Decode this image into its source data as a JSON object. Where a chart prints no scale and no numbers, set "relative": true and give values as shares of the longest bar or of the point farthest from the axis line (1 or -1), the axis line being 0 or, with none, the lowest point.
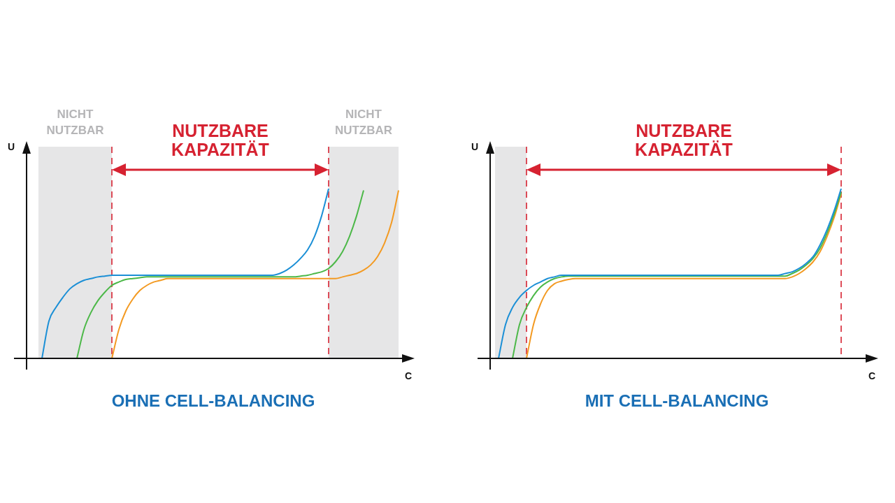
{
  "chart_data": [
    {
      "type": "line",
      "title": "OHNE CELL-BALANCING",
      "xlabel": "C",
      "ylabel": "U",
      "relative": true,
      "annotations": [
        "NICHT NUTZBAR",
        "NICHT NUTZBAR",
        "NUTZBARE KAPAZITÄT"
      ],
      "categories": [
        null,
        null,
        null,
        null,
        null,
        null,
        null,
        null,
        null,
        null,
        null,
        null,
        null,
        null,
        null,
        null,
        null,
        null,
        null,
        null,
        null,
        null,
        null,
        null,
        null,
        null,
        null,
        null,
        null,
        null,
        null,
        null,
        null,
        null,
        null,
        null,
        null,
        null,
        null,
        null,
        null,
        null,
        null,
        null,
        null,
        null,
        null,
        null,
        null,
        null,
        null,
        null,
        null,
        null
      ],
      "series": [
        {
          "color": "#1b8fd6",
          "values": [
            null,
            null,
            0,
            0.22,
            0.3,
            0.36,
            0.41,
            0.44,
            0.46,
            0.47,
            0.48,
            0.485,
            0.49,
            0.49,
            0.49,
            0.49,
            0.49,
            0.49,
            0.49,
            0.49,
            0.49,
            0.49,
            0.49,
            0.49,
            0.49,
            0.49,
            0.49,
            0.49,
            0.49,
            0.49,
            0.49,
            0.49,
            0.49,
            0.49,
            0.49,
            0.49,
            0.5,
            0.52,
            0.55,
            0.59,
            0.64,
            0.72,
            0.84,
            1,
            null,
            null,
            null,
            null,
            null,
            null,
            null,
            null,
            null,
            null
          ]
        },
        {
          "color": "#4cb848",
          "values": [
            null,
            null,
            null,
            null,
            null,
            null,
            null,
            0,
            0.17,
            0.27,
            0.34,
            0.39,
            0.43,
            0.45,
            0.465,
            0.47,
            0.475,
            0.48,
            0.48,
            0.48,
            0.48,
            0.48,
            0.48,
            0.48,
            0.48,
            0.48,
            0.48,
            0.48,
            0.48,
            0.48,
            0.48,
            0.48,
            0.48,
            0.48,
            0.48,
            0.48,
            0.48,
            0.48,
            0.48,
            0.485,
            0.49,
            0.5,
            0.51,
            0.53,
            0.57,
            0.63,
            0.72,
            0.84,
            0.99,
            null,
            null,
            null,
            null,
            null
          ]
        },
        {
          "color": "#f39a22",
          "values": [
            null,
            null,
            null,
            null,
            null,
            null,
            null,
            null,
            null,
            null,
            null,
            null,
            0,
            0.17,
            0.28,
            0.35,
            0.4,
            0.43,
            0.45,
            0.46,
            0.47,
            0.47,
            0.47,
            0.47,
            0.47,
            0.47,
            0.47,
            0.47,
            0.47,
            0.47,
            0.47,
            0.47,
            0.47,
            0.47,
            0.47,
            0.47,
            0.47,
            0.47,
            0.47,
            0.47,
            0.47,
            0.47,
            0.47,
            0.47,
            0.47,
            0.48,
            0.49,
            0.5,
            0.52,
            0.55,
            0.6,
            0.68,
            0.8,
            0.99
          ]
        }
      ]
    },
    {
      "type": "line",
      "title": "MIT CELL-BALANCING",
      "xlabel": "C",
      "ylabel": "U",
      "relative": true,
      "annotations": [
        "NUTZBARE KAPAZITÄT"
      ],
      "categories": [
        null,
        null,
        null,
        null,
        null,
        null,
        null,
        null,
        null,
        null,
        null,
        null,
        null,
        null,
        null,
        null,
        null,
        null,
        null,
        null,
        null,
        null,
        null,
        null,
        null,
        null,
        null,
        null,
        null,
        null,
        null,
        null,
        null,
        null,
        null,
        null,
        null,
        null,
        null,
        null,
        null,
        null,
        null,
        null,
        null,
        null,
        null,
        null,
        null,
        null,
        null,
        null,
        null,
        null
      ],
      "series": [
        {
          "color": "#1b8fd6",
          "values": [
            null,
            0,
            0.2,
            0.3,
            0.36,
            0.4,
            0.43,
            0.45,
            0.47,
            0.48,
            0.49,
            0.49,
            0.49,
            0.49,
            0.49,
            0.49,
            0.49,
            0.49,
            0.49,
            0.49,
            0.49,
            0.49,
            0.49,
            0.49,
            0.49,
            0.49,
            0.49,
            0.49,
            0.49,
            0.49,
            0.49,
            0.49,
            0.49,
            0.49,
            0.49,
            0.49,
            0.49,
            0.49,
            0.49,
            0.49,
            0.49,
            0.49,
            0.5,
            0.51,
            0.53,
            0.56,
            0.6,
            0.67,
            0.76,
            0.87,
            1,
            null,
            null,
            null
          ]
        },
        {
          "color": "#4cb848",
          "values": [
            null,
            null,
            null,
            0,
            0.2,
            0.3,
            0.37,
            0.42,
            0.45,
            0.47,
            0.48,
            0.485,
            0.485,
            0.485,
            0.485,
            0.485,
            0.485,
            0.485,
            0.485,
            0.485,
            0.485,
            0.485,
            0.485,
            0.485,
            0.485,
            0.485,
            0.485,
            0.485,
            0.485,
            0.485,
            0.485,
            0.485,
            0.485,
            0.485,
            0.485,
            0.485,
            0.485,
            0.485,
            0.485,
            0.485,
            0.485,
            0.485,
            0.485,
            0.5,
            0.52,
            0.55,
            0.59,
            0.65,
            0.74,
            0.85,
            0.98,
            null,
            null,
            null
          ]
        },
        {
          "color": "#f39a22",
          "values": [
            null,
            null,
            null,
            null,
            null,
            0,
            0.2,
            0.32,
            0.4,
            0.44,
            0.455,
            0.465,
            0.47,
            0.47,
            0.47,
            0.47,
            0.47,
            0.47,
            0.47,
            0.47,
            0.47,
            0.47,
            0.47,
            0.47,
            0.47,
            0.47,
            0.47,
            0.47,
            0.47,
            0.47,
            0.47,
            0.47,
            0.47,
            0.47,
            0.47,
            0.47,
            0.47,
            0.47,
            0.47,
            0.47,
            0.47,
            0.47,
            0.47,
            0.48,
            0.5,
            0.53,
            0.57,
            0.63,
            0.72,
            0.83,
            0.97,
            null,
            null,
            null
          ]
        }
      ]
    }
  ]
}
